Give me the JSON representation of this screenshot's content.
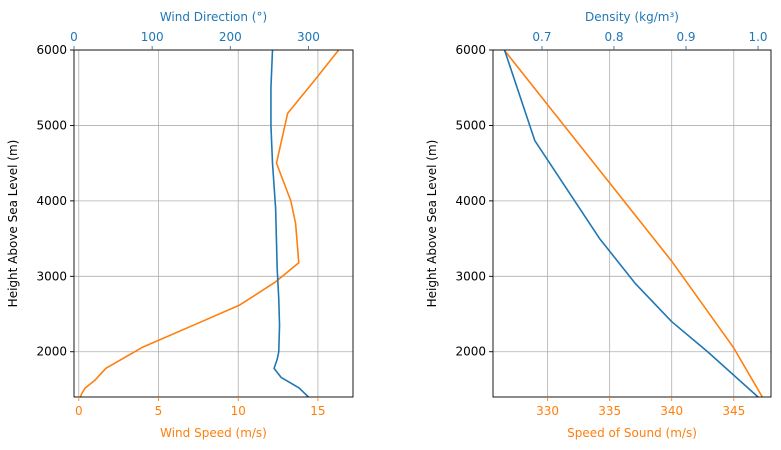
{
  "chart_data": [
    {
      "type": "line",
      "ylabel": "Height Above Sea Level (m)",
      "ylim": [
        1400,
        6000
      ],
      "yticks": [
        2000,
        3000,
        4000,
        5000,
        6000
      ],
      "grid": true,
      "bottom_axis": {
        "label": "Wind Speed (m/s)",
        "color": "#ff7f0e",
        "lim": [
          -0.3,
          17.2
        ],
        "ticks": [
          0,
          5,
          10,
          15
        ]
      },
      "top_axis": {
        "label": "Wind Direction (°)",
        "color": "#1f77b4",
        "lim": [
          0,
          357
        ],
        "ticks": [
          0,
          100,
          200,
          300
        ]
      },
      "series": [
        {
          "axis": "bottom",
          "color": "#ff7f0e",
          "points": [
            [
              0.1,
              1400
            ],
            [
              0.2,
              1450
            ],
            [
              0.4,
              1520
            ],
            [
              1.0,
              1620
            ],
            [
              1.7,
              1780
            ],
            [
              4.0,
              2060
            ],
            [
              7.5,
              2380
            ],
            [
              10.1,
              2620
            ],
            [
              12.3,
              2920
            ],
            [
              13.8,
              3180
            ],
            [
              13.6,
              3700
            ],
            [
              13.3,
              4000
            ],
            [
              12.4,
              4500
            ],
            [
              13.1,
              5160
            ],
            [
              14.8,
              5600
            ],
            [
              16.3,
              6000
            ]
          ]
        },
        {
          "axis": "top",
          "color": "#1f77b4",
          "points": [
            [
              300,
              1400
            ],
            [
              288,
              1520
            ],
            [
              265,
              1660
            ],
            [
              256,
              1780
            ],
            [
              260,
              1900
            ],
            [
              262,
              2000
            ],
            [
              263,
              2350
            ],
            [
              262,
              2700
            ],
            [
              260,
              3100
            ],
            [
              259,
              3500
            ],
            [
              258,
              3900
            ],
            [
              254,
              4500
            ],
            [
              252,
              5000
            ],
            [
              252,
              5500
            ],
            [
              254,
              6000
            ]
          ]
        }
      ]
    },
    {
      "type": "line",
      "ylabel": "Height Above Sea Level (m)",
      "ylim": [
        1400,
        6000
      ],
      "yticks": [
        2000,
        3000,
        4000,
        5000,
        6000
      ],
      "grid": true,
      "bottom_axis": {
        "label": "Speed of Sound (m/s)",
        "color": "#ff7f0e",
        "lim": [
          325.6,
          348.0
        ],
        "ticks": [
          330,
          335,
          340,
          345
        ]
      },
      "top_axis": {
        "label": "Density (kg/m³)",
        "color": "#1f77b4",
        "lim": [
          0.632,
          1.018
        ],
        "ticks": [
          0.7,
          0.8,
          0.9,
          1.0
        ],
        "tick_labels": [
          "0.7",
          "0.8",
          "0.9",
          "1.0"
        ]
      },
      "series": [
        {
          "axis": "bottom",
          "color": "#ff7f0e",
          "points": [
            [
              347.3,
              1400
            ],
            [
              345.0,
              2050
            ],
            [
              340.0,
              3200
            ],
            [
              326.5,
              6000
            ]
          ]
        },
        {
          "axis": "top",
          "color": "#1f77b4",
          "points": [
            [
              1.0,
              1400
            ],
            [
              0.93,
              2000
            ],
            [
              0.88,
              2400
            ],
            [
              0.83,
              2900
            ],
            [
              0.78,
              3500
            ],
            [
              0.69,
              4800
            ],
            [
              0.648,
              6000
            ]
          ]
        }
      ]
    }
  ]
}
